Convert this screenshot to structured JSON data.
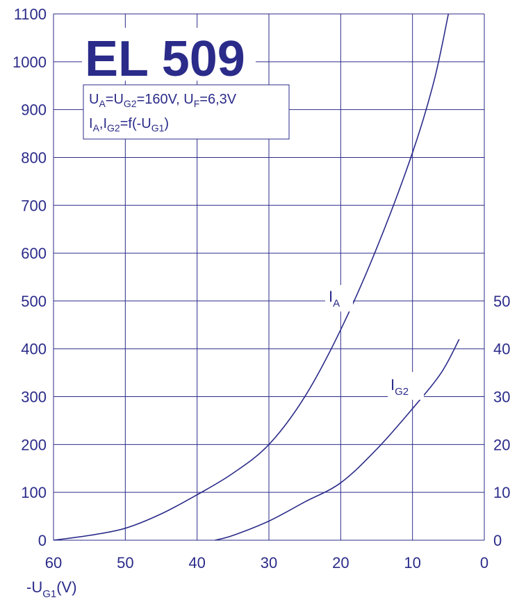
{
  "chart_data": {
    "type": "line",
    "title": "EL 509",
    "conditions_line1": {
      "parts": [
        "U",
        "A",
        "=U",
        "G2",
        "=160V, U",
        "F",
        "=6,3V"
      ]
    },
    "conditions_line2": {
      "parts": [
        "I",
        "A",
        ",I",
        "G2",
        "=f(-U",
        "G1",
        ")"
      ]
    },
    "xlabel": {
      "main": "-U",
      "sub": "G1",
      "tail": "(V)"
    },
    "x_ticks": [
      "60",
      "50",
      "40",
      "30",
      "20",
      "10",
      "0"
    ],
    "y_left_ticks": [
      "0",
      "100",
      "200",
      "300",
      "400",
      "500",
      "600",
      "700",
      "800",
      "900",
      "1000",
      "1100"
    ],
    "y_right_ticks": [
      "0",
      "10",
      "20",
      "30",
      "40",
      "50"
    ],
    "xlim": [
      60,
      0
    ],
    "ylim_left": [
      0,
      1100
    ],
    "ylim_right": [
      0,
      110
    ],
    "grid": true,
    "series": [
      {
        "name": "IA",
        "label_main": "I",
        "label_sub": "A",
        "axis": "left",
        "x": [
          60,
          55,
          50,
          45,
          40,
          35,
          30,
          25,
          20,
          15,
          10,
          7,
          5
        ],
        "y": [
          0,
          10,
          25,
          55,
          95,
          140,
          200,
          300,
          440,
          610,
          810,
          960,
          1100
        ]
      },
      {
        "name": "IG2",
        "label_main": "I",
        "label_sub": "G2",
        "axis": "right",
        "x": [
          37.5,
          35,
          30,
          25,
          20,
          15,
          10,
          6,
          3.5
        ],
        "y": [
          0,
          1,
          4,
          8,
          12,
          19,
          27.5,
          35,
          42
        ]
      }
    ],
    "colors": {
      "ink": "#2b2b8a",
      "grid": "#2b2b8a",
      "background": "#ffffff"
    }
  }
}
